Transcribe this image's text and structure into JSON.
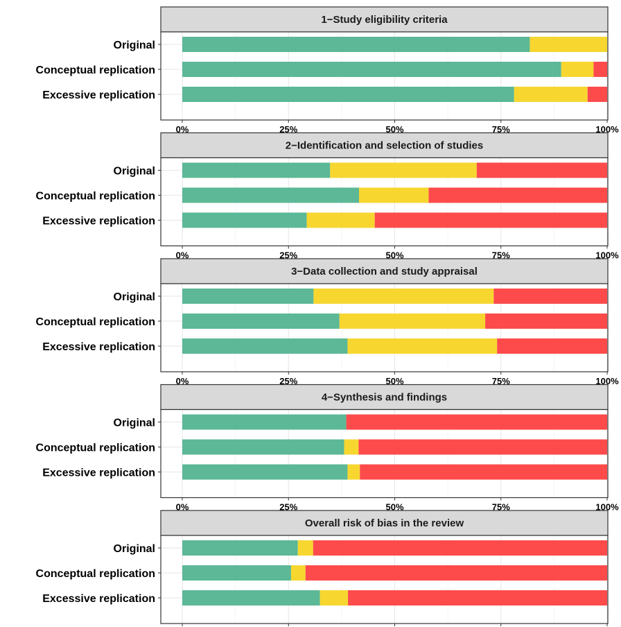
{
  "chart_data": {
    "type": "bar",
    "stacked": true,
    "orientation": "horizontal",
    "scale": "percent",
    "xlim": [
      0,
      100
    ],
    "x_ticks": [
      "0%",
      "25%",
      "50%",
      "75%",
      "100%"
    ],
    "grid": true,
    "legend": "none",
    "categories": [
      "Original",
      "Conceptual replication",
      "Excessive replication"
    ],
    "segment_colors": [
      "#5cb896",
      "#f7d630",
      "#fd4b4b"
    ],
    "facets": [
      {
        "title": "1−Study eligibility criteria",
        "rows": [
          {
            "category": "Original",
            "segments": [
              81.8,
              18.2,
              0
            ]
          },
          {
            "category": "Conceptual replication",
            "segments": [
              89.2,
              7.6,
              3.2
            ]
          },
          {
            "category": "Excessive replication",
            "segments": [
              78.1,
              17.3,
              4.6
            ]
          }
        ]
      },
      {
        "title": "2−Identification and selection of studies",
        "rows": [
          {
            "category": "Original",
            "segments": [
              34.8,
              34.5,
              30.7
            ]
          },
          {
            "category": "Conceptual replication",
            "segments": [
              41.6,
              16.4,
              42.0
            ]
          },
          {
            "category": "Excessive replication",
            "segments": [
              29.3,
              16.0,
              54.7
            ]
          }
        ]
      },
      {
        "title": "3−Data collection and study appraisal",
        "rows": [
          {
            "category": "Original",
            "segments": [
              30.9,
              42.4,
              26.7
            ]
          },
          {
            "category": "Conceptual replication",
            "segments": [
              37.0,
              34.3,
              28.7
            ]
          },
          {
            "category": "Excessive replication",
            "segments": [
              38.9,
              35.2,
              25.9
            ]
          }
        ]
      },
      {
        "title": "4−Synthesis and findings",
        "rows": [
          {
            "category": "Original",
            "segments": [
              38.6,
              0,
              61.4
            ]
          },
          {
            "category": "Conceptual replication",
            "segments": [
              38.1,
              3.4,
              58.5
            ]
          },
          {
            "category": "Excessive replication",
            "segments": [
              38.9,
              2.9,
              58.2
            ]
          }
        ]
      },
      {
        "title": "Overall risk of bias in the review",
        "rows": [
          {
            "category": "Original",
            "segments": [
              27.2,
              3.6,
              69.2
            ]
          },
          {
            "category": "Conceptual replication",
            "segments": [
              25.6,
              3.4,
              71.0
            ]
          },
          {
            "category": "Excessive replication",
            "segments": [
              32.4,
              6.6,
              61.0
            ]
          }
        ]
      }
    ]
  }
}
